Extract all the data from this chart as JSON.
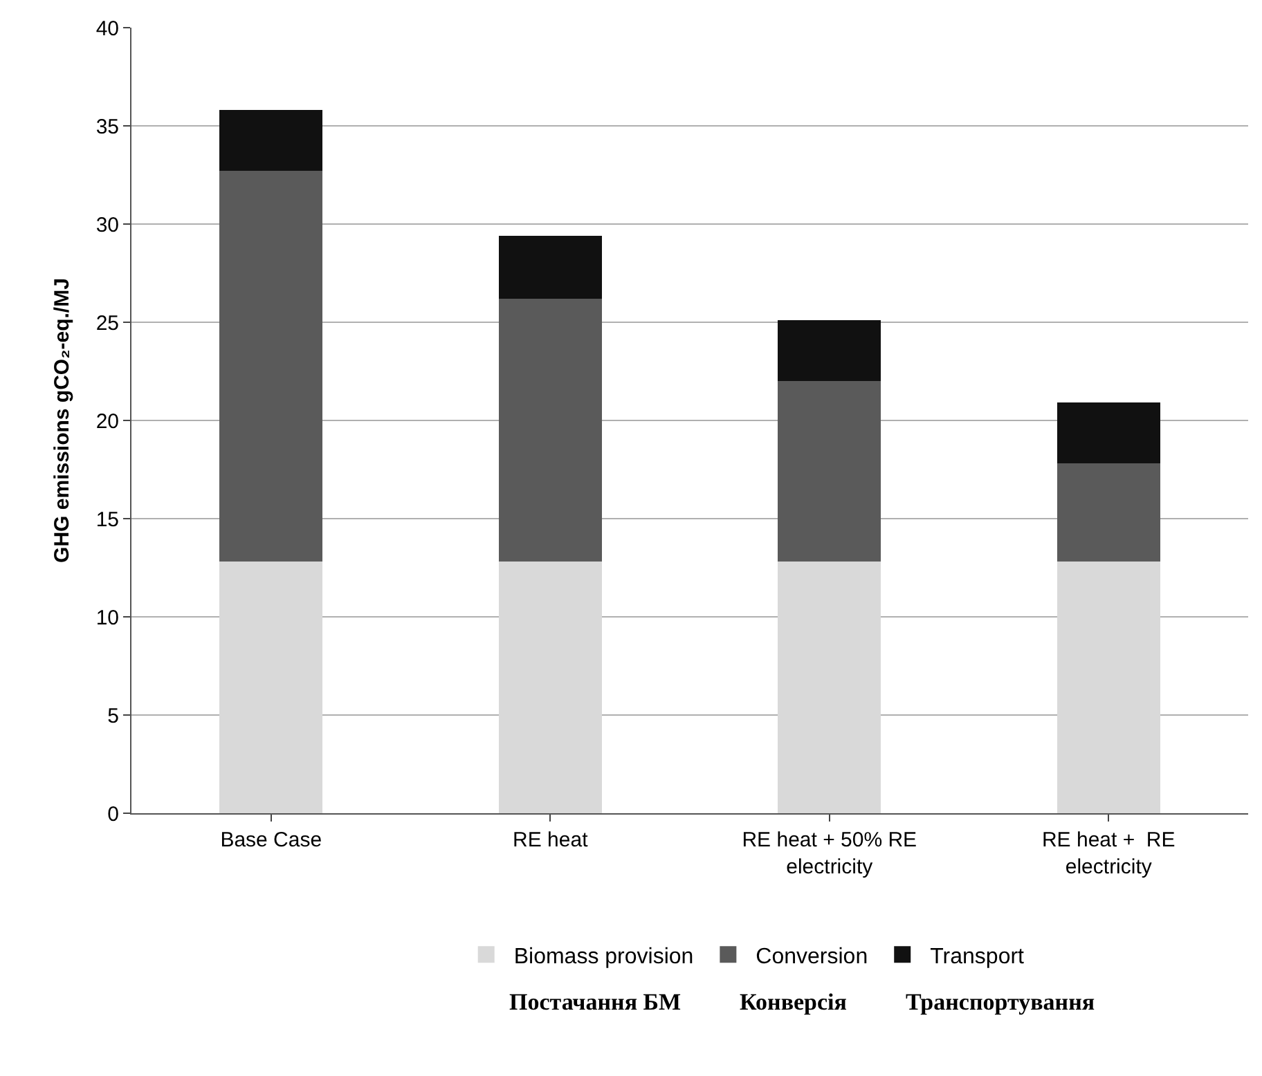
{
  "chart_data": {
    "type": "bar",
    "stacked": true,
    "categories": [
      "Base Case",
      "RE heat",
      "RE heat + 50% RE electricity",
      "RE heat +  RE electricity"
    ],
    "ylabel": "GHG emissions gCO₂-eq./MJ",
    "series": [
      {
        "name": "Biomass provision",
        "color": "#d9d9d9",
        "values": [
          12.8,
          12.8,
          12.8,
          12.8
        ]
      },
      {
        "name": "Conversion",
        "color": "#5a5a5a",
        "values": [
          19.9,
          13.4,
          9.2,
          5.0
        ]
      },
      {
        "name": "Transport",
        "color": "#111111",
        "values": [
          3.1,
          3.2,
          3.1,
          3.1
        ]
      }
    ],
    "ylim": [
      0,
      40
    ],
    "yticks": [
      0,
      5,
      10,
      15,
      20,
      25,
      30,
      35,
      40
    ],
    "grid": "y",
    "legend": "bottom",
    "annotations": [
      "Постачання БМ          Конверсія          Транспортування"
    ]
  }
}
